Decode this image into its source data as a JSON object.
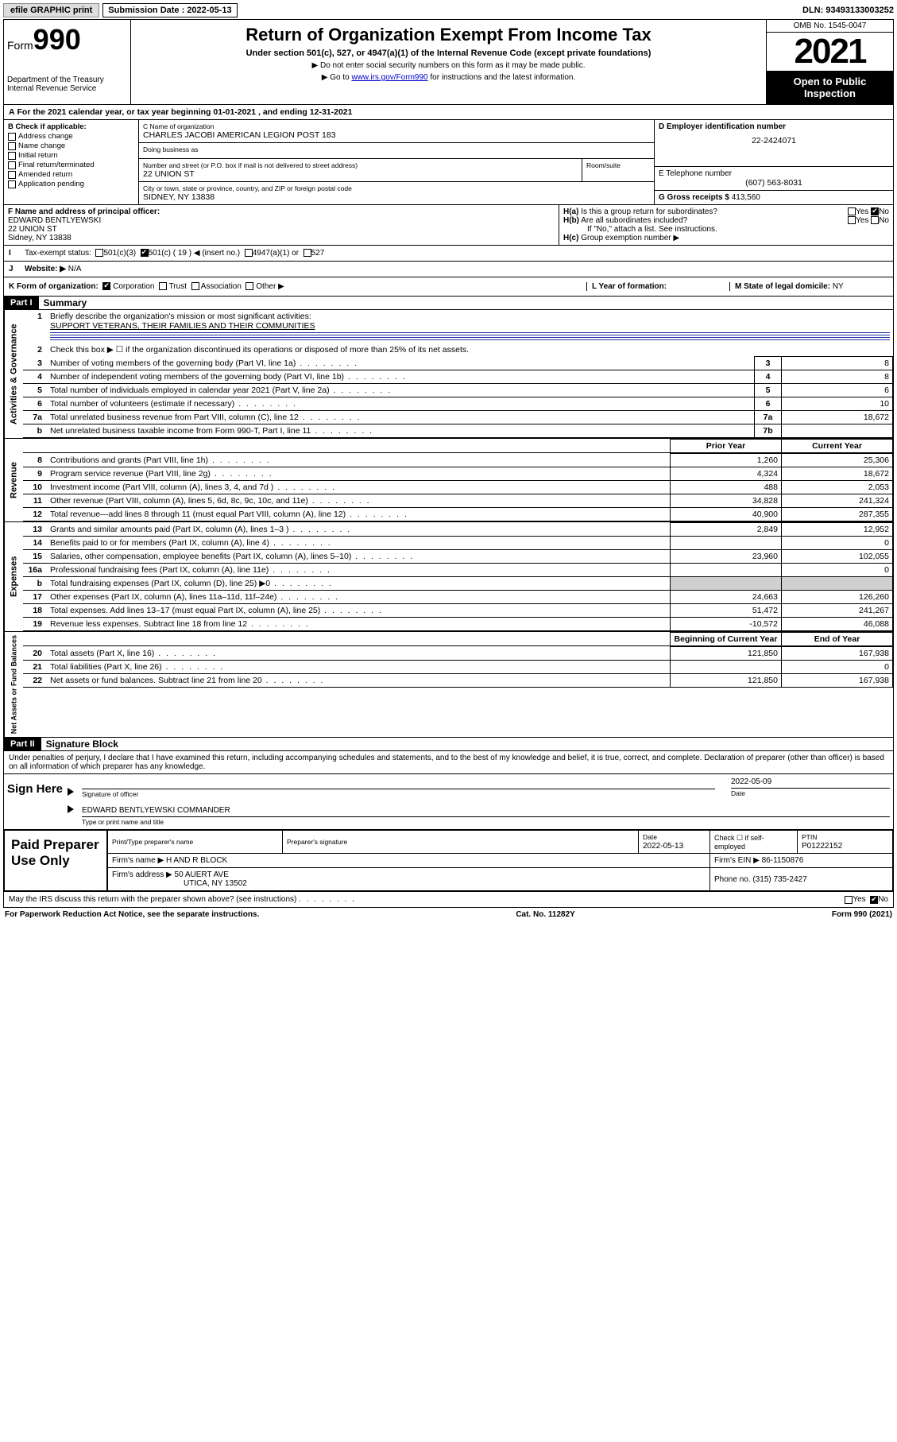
{
  "top": {
    "efile": "efile GRAPHIC print",
    "submission_label": "Submission Date : 2022-05-13",
    "dln": "DLN: 93493133003252"
  },
  "header": {
    "form_prefix": "Form",
    "form_no": "990",
    "dept": "Department of the Treasury",
    "irs": "Internal Revenue Service",
    "title": "Return of Organization Exempt From Income Tax",
    "sub1": "Under section 501(c), 527, or 4947(a)(1) of the Internal Revenue Code (except private foundations)",
    "sub2": "▶ Do not enter social security numbers on this form as it may be made public.",
    "sub3_pre": "▶ Go to ",
    "sub3_link": "www.irs.gov/Form990",
    "sub3_post": " for instructions and the latest information.",
    "omb": "OMB No. 1545-0047",
    "year": "2021",
    "open": "Open to Public Inspection"
  },
  "A": {
    "text_pre": "For the 2021 calendar year, or tax year beginning ",
    "begin": "01-01-2021",
    "mid": " , and ending ",
    "end": "12-31-2021"
  },
  "B": {
    "header": "B Check if applicable:",
    "items": [
      "Address change",
      "Name change",
      "Initial return",
      "Final return/terminated",
      "Amended return",
      "Application pending"
    ]
  },
  "C": {
    "name_label": "C Name of organization",
    "name": "CHARLES JACOBI AMERICAN LEGION POST 183",
    "dba_label": "Doing business as",
    "street_label": "Number and street (or P.O. box if mail is not delivered to street address)",
    "room_label": "Room/suite",
    "street": "22 UNION ST",
    "city_label": "City or town, state or province, country, and ZIP or foreign postal code",
    "city": "SIDNEY, NY  13838"
  },
  "D": {
    "label": "D Employer identification number",
    "val": "22-2424071"
  },
  "E": {
    "label": "E Telephone number",
    "val": "(607) 563-8031"
  },
  "G": {
    "label": "G Gross receipts $",
    "val": "413,560"
  },
  "F": {
    "label": "F Name and address of principal officer:",
    "name": "EDWARD BENTLYEWSKI",
    "street": "22 UNION ST",
    "city": "Sidney, NY  13838"
  },
  "H": {
    "a": "Is this a group return for subordinates?",
    "a_no": "No",
    "b": "Are all subordinates included?",
    "b_note": "If \"No,\" attach a list. See instructions.",
    "c": "Group exemption number ▶"
  },
  "I": {
    "label": "Tax-exempt status:",
    "opt_501c3": "501(c)(3)",
    "opt_501c": "501(c) ( 19 ) ◀ (insert no.)",
    "opt_4947": "4947(a)(1) or",
    "opt_527": "527"
  },
  "J": {
    "label": "Website: ▶",
    "val": "N/A"
  },
  "K": {
    "label": "K Form of organization:",
    "corp": "Corporation",
    "trust": "Trust",
    "assoc": "Association",
    "other": "Other ▶"
  },
  "L": {
    "label": "L Year of formation:",
    "val": ""
  },
  "M": {
    "label": "M State of legal domicile:",
    "val": "NY"
  },
  "partI": {
    "header": "Part I",
    "title": "Summary",
    "line1_label": "Briefly describe the organization's mission or most significant activities:",
    "line1_val": "SUPPORT VETERANS, THEIR FAMILIES AND THEIR COMMUNITIES",
    "line2": "Check this box ▶ ☐  if the organization discontinued its operations or disposed of more than 25% of its net assets.",
    "rows_gov": [
      {
        "n": "3",
        "t": "Number of voting members of the governing body (Part VI, line 1a)",
        "box": "3",
        "v": "8"
      },
      {
        "n": "4",
        "t": "Number of independent voting members of the governing body (Part VI, line 1b)",
        "box": "4",
        "v": "8"
      },
      {
        "n": "5",
        "t": "Total number of individuals employed in calendar year 2021 (Part V, line 2a)",
        "box": "5",
        "v": "6"
      },
      {
        "n": "6",
        "t": "Total number of volunteers (estimate if necessary)",
        "box": "6",
        "v": "10"
      },
      {
        "n": "7a",
        "t": "Total unrelated business revenue from Part VIII, column (C), line 12",
        "box": "7a",
        "v": "18,672"
      },
      {
        "n": "b",
        "t": "Net unrelated business taxable income from Form 990-T, Part I, line 11",
        "box": "7b",
        "v": ""
      }
    ],
    "col_headers": {
      "prior": "Prior Year",
      "current": "Current Year"
    },
    "rows_rev": [
      {
        "n": "8",
        "t": "Contributions and grants (Part VIII, line 1h)",
        "p": "1,260",
        "c": "25,306"
      },
      {
        "n": "9",
        "t": "Program service revenue (Part VIII, line 2g)",
        "p": "4,324",
        "c": "18,672"
      },
      {
        "n": "10",
        "t": "Investment income (Part VIII, column (A), lines 3, 4, and 7d )",
        "p": "488",
        "c": "2,053"
      },
      {
        "n": "11",
        "t": "Other revenue (Part VIII, column (A), lines 5, 6d, 8c, 9c, 10c, and 11e)",
        "p": "34,828",
        "c": "241,324"
      },
      {
        "n": "12",
        "t": "Total revenue—add lines 8 through 11 (must equal Part VIII, column (A), line 12)",
        "p": "40,900",
        "c": "287,355"
      }
    ],
    "rows_exp": [
      {
        "n": "13",
        "t": "Grants and similar amounts paid (Part IX, column (A), lines 1–3 )",
        "p": "2,849",
        "c": "12,952"
      },
      {
        "n": "14",
        "t": "Benefits paid to or for members (Part IX, column (A), line 4)",
        "p": "",
        "c": "0"
      },
      {
        "n": "15",
        "t": "Salaries, other compensation, employee benefits (Part IX, column (A), lines 5–10)",
        "p": "23,960",
        "c": "102,055"
      },
      {
        "n": "16a",
        "t": "Professional fundraising fees (Part IX, column (A), line 11e)",
        "p": "",
        "c": "0"
      },
      {
        "n": "b",
        "t": "Total fundraising expenses (Part IX, column (D), line 25) ▶0",
        "p": "SHADE",
        "c": "SHADE"
      },
      {
        "n": "17",
        "t": "Other expenses (Part IX, column (A), lines 11a–11d, 11f–24e)",
        "p": "24,663",
        "c": "126,260"
      },
      {
        "n": "18",
        "t": "Total expenses. Add lines 13–17 (must equal Part IX, column (A), line 25)",
        "p": "51,472",
        "c": "241,267"
      },
      {
        "n": "19",
        "t": "Revenue less expenses. Subtract line 18 from line 12",
        "p": "-10,572",
        "c": "46,088"
      }
    ],
    "net_headers": {
      "begin": "Beginning of Current Year",
      "end": "End of Year"
    },
    "rows_net": [
      {
        "n": "20",
        "t": "Total assets (Part X, line 16)",
        "p": "121,850",
        "c": "167,938"
      },
      {
        "n": "21",
        "t": "Total liabilities (Part X, line 26)",
        "p": "",
        "c": "0"
      },
      {
        "n": "22",
        "t": "Net assets or fund balances. Subtract line 21 from line 20",
        "p": "121,850",
        "c": "167,938"
      }
    ],
    "vert": {
      "gov": "Activities & Governance",
      "rev": "Revenue",
      "exp": "Expenses",
      "net": "Net Assets or Fund Balances"
    }
  },
  "partII": {
    "header": "Part II",
    "title": "Signature Block",
    "decl": "Under penalties of perjury, I declare that I have examined this return, including accompanying schedules and statements, and to the best of my knowledge and belief, it is true, correct, and complete. Declaration of preparer (other than officer) is based on all information of which preparer has any knowledge.",
    "sign_here": "Sign Here",
    "sig_officer": "Signature of officer",
    "sig_date": "2022-05-09",
    "date_label": "Date",
    "officer_name": "EDWARD BENTLYEWSKI COMMANDER",
    "officer_label": "Type or print name and title",
    "paid": "Paid Preparer Use Only",
    "prep_name_label": "Print/Type preparer's name",
    "prep_sig_label": "Preparer's signature",
    "prep_date_label": "Date",
    "prep_date": "2022-05-13",
    "check_if": "Check ☐ if self-employed",
    "ptin_label": "PTIN",
    "ptin": "P01222152",
    "firm_name_label": "Firm's name    ▶",
    "firm_name": "H AND R BLOCK",
    "firm_ein_label": "Firm's EIN ▶",
    "firm_ein": "86-1150876",
    "firm_addr_label": "Firm's address ▶",
    "firm_addr1": "50 AUERT AVE",
    "firm_addr2": "UTICA, NY  13502",
    "firm_phone_label": "Phone no.",
    "firm_phone": "(315) 735-2427",
    "discuss": "May the IRS discuss this return with the preparer shown above? (see instructions)",
    "yes": "Yes",
    "no": "No"
  },
  "footer": {
    "pra": "For Paperwork Reduction Act Notice, see the separate instructions.",
    "cat": "Cat. No. 11282Y",
    "form": "Form 990 (2021)"
  }
}
